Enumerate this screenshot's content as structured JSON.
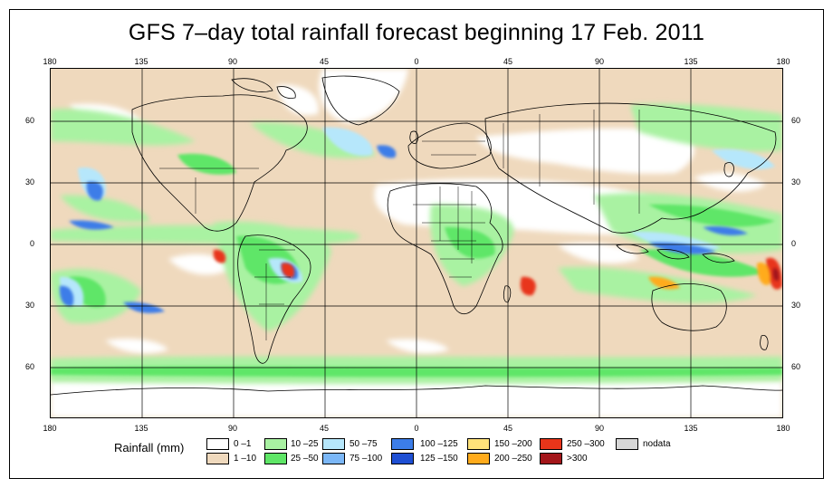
{
  "title": "GFS 7–day total rainfall forecast beginning 17 Feb. 2011",
  "axes": {
    "lon_top": [
      "180",
      "135",
      "90",
      "45",
      "0",
      "45",
      "90",
      "135",
      "180"
    ],
    "lon_bottom": [
      "180",
      "135",
      "90",
      "45",
      "0",
      "45",
      "90",
      "135",
      "180"
    ],
    "lat_left": [
      "60",
      "30",
      "0",
      "30",
      "60"
    ],
    "lat_right": [
      "60",
      "30",
      "0",
      "30",
      "60"
    ]
  },
  "legend": {
    "title": "Rainfall (mm)",
    "items": [
      {
        "label": "0 –1",
        "color": "#ffffff"
      },
      {
        "label": "1 –10",
        "color": "#efd9bd"
      },
      {
        "label": "10 –25",
        "color": "#a9f2a2"
      },
      {
        "label": "25 –50",
        "color": "#5fe667"
      },
      {
        "label": "50 –75",
        "color": "#b6e7fb"
      },
      {
        "label": "75 –100",
        "color": "#7bb7f7"
      },
      {
        "label": "100 –125",
        "color": "#3c7de8"
      },
      {
        "label": "125 –150",
        "color": "#1e4fd3"
      },
      {
        "label": "150 –200",
        "color": "#ffe27a"
      },
      {
        "label": "200 –250",
        "color": "#ffab1c"
      },
      {
        "label": "250 –300",
        "color": "#e8351a"
      },
      {
        "label": ">300",
        "color": "#a3161a"
      },
      {
        "label": "nodata",
        "color": "#d7d7d7"
      }
    ]
  },
  "colors": {
    "frame": "#000000",
    "gridline": "#000000",
    "coast": "#000000"
  }
}
